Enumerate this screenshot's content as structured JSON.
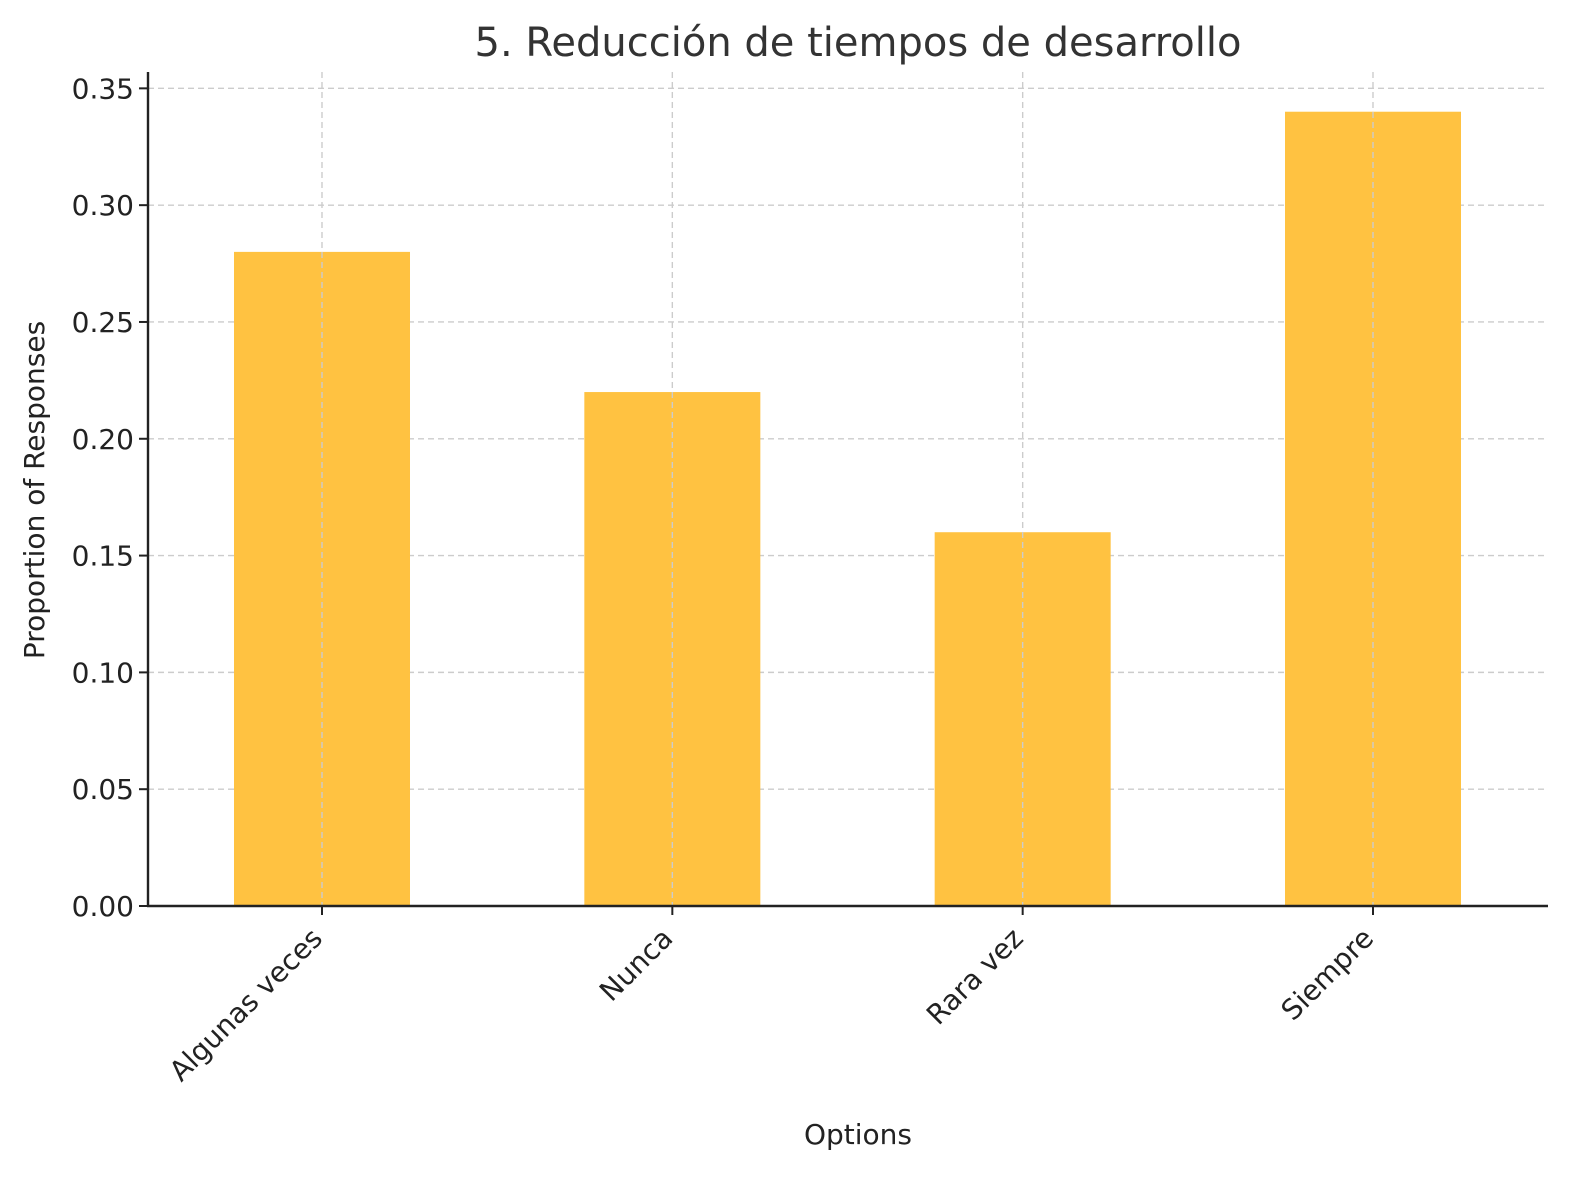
{
  "chart_data": {
    "type": "bar",
    "title": "5. Reducción de tiempos de desarrollo",
    "xlabel": "Options",
    "ylabel": "Proportion of Responses",
    "categories": [
      "Algunas veces",
      "Nunca",
      "Rara vez",
      "Siempre"
    ],
    "values": [
      0.28,
      0.22,
      0.16,
      0.34
    ],
    "ylim": [
      0,
      0.357
    ],
    "yticks": [
      "0.00",
      "0.05",
      "0.10",
      "0.15",
      "0.20",
      "0.25",
      "0.30",
      "0.35"
    ],
    "grid": true,
    "bar_color": "#FFC241",
    "x_tick_rotation": "45"
  }
}
